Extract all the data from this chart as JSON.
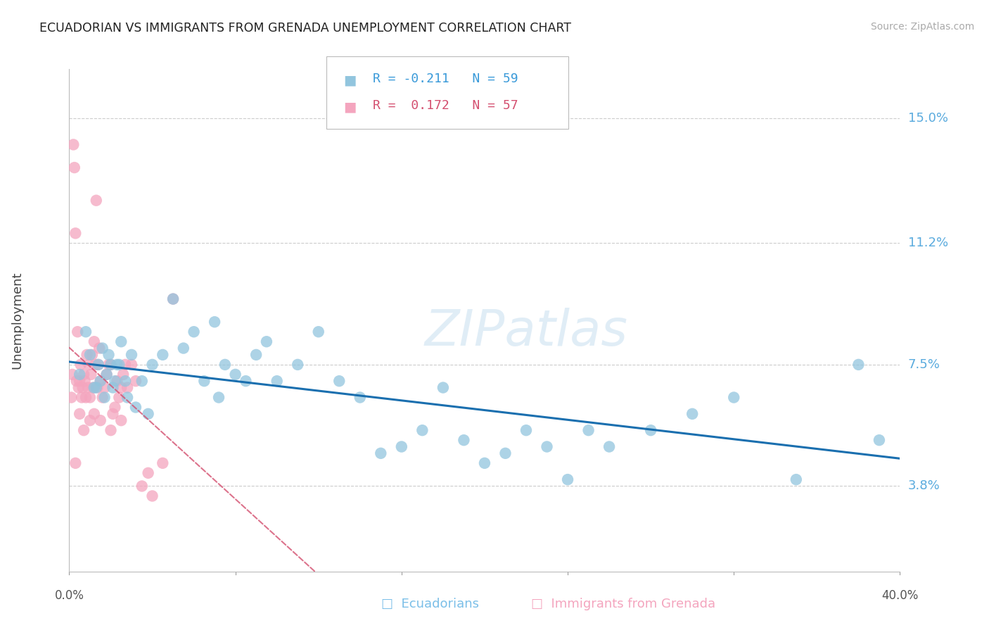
{
  "title": "ECUADORIAN VS IMMIGRANTS FROM GRENADA UNEMPLOYMENT CORRELATION CHART",
  "source": "Source: ZipAtlas.com",
  "ylabel": "Unemployment",
  "ytick_labels": [
    "3.8%",
    "7.5%",
    "11.2%",
    "15.0%"
  ],
  "ytick_values": [
    3.8,
    7.5,
    11.2,
    15.0
  ],
  "xmin": 0.0,
  "xmax": 40.0,
  "ymin": 1.2,
  "ymax": 16.5,
  "color_blue": "#92c5de",
  "color_pink": "#f4a5be",
  "color_trendline_blue": "#1a6faf",
  "color_trendline_pink": "#d45070",
  "watermark": "ZIPatlas",
  "watermark_color": "#c8dff0",
  "ecuadorians_x": [
    0.5,
    0.8,
    1.0,
    1.2,
    1.4,
    1.5,
    1.6,
    1.7,
    1.8,
    1.9,
    2.0,
    2.1,
    2.2,
    2.3,
    2.5,
    2.7,
    2.8,
    3.0,
    3.2,
    3.5,
    4.0,
    4.5,
    5.0,
    5.5,
    6.0,
    6.5,
    7.0,
    7.5,
    8.0,
    8.5,
    9.0,
    9.5,
    10.0,
    11.0,
    12.0,
    13.0,
    14.0,
    15.0,
    16.0,
    17.0,
    18.0,
    19.0,
    20.0,
    21.0,
    22.0,
    23.0,
    24.0,
    25.0,
    26.0,
    28.0,
    30.0,
    32.0,
    35.0,
    38.0,
    39.0,
    1.3,
    2.4,
    3.8,
    7.2
  ],
  "ecuadorians_y": [
    7.2,
    8.5,
    7.8,
    6.8,
    7.5,
    7.0,
    8.0,
    6.5,
    7.2,
    7.8,
    7.5,
    6.8,
    7.0,
    7.5,
    8.2,
    7.0,
    6.5,
    7.8,
    6.2,
    7.0,
    7.5,
    7.8,
    9.5,
    8.0,
    8.5,
    7.0,
    8.8,
    7.5,
    7.2,
    7.0,
    7.8,
    8.2,
    7.0,
    7.5,
    8.5,
    7.0,
    6.5,
    4.8,
    5.0,
    5.5,
    6.8,
    5.2,
    4.5,
    4.8,
    5.5,
    5.0,
    4.0,
    5.5,
    5.0,
    5.5,
    6.0,
    6.5,
    4.0,
    7.5,
    5.2,
    6.8,
    7.5,
    6.0,
    6.5
  ],
  "grenada_x": [
    0.1,
    0.15,
    0.2,
    0.25,
    0.3,
    0.35,
    0.4,
    0.45,
    0.5,
    0.55,
    0.6,
    0.65,
    0.7,
    0.75,
    0.8,
    0.85,
    0.9,
    0.95,
    1.0,
    1.05,
    1.1,
    1.15,
    1.2,
    1.25,
    1.3,
    1.35,
    1.4,
    1.45,
    1.5,
    1.6,
    1.7,
    1.8,
    1.9,
    2.0,
    2.1,
    2.2,
    2.3,
    2.4,
    2.5,
    2.6,
    2.7,
    2.8,
    3.0,
    3.2,
    3.5,
    3.8,
    4.0,
    4.5,
    5.0,
    0.3,
    0.5,
    0.7,
    1.0,
    1.2,
    1.5,
    2.0,
    2.5
  ],
  "grenada_y": [
    6.5,
    7.2,
    14.2,
    13.5,
    11.5,
    7.0,
    8.5,
    6.8,
    7.0,
    7.5,
    6.5,
    6.8,
    7.2,
    7.0,
    6.5,
    7.8,
    6.8,
    7.5,
    6.5,
    7.2,
    7.8,
    6.8,
    8.2,
    7.5,
    12.5,
    6.8,
    7.5,
    8.0,
    7.0,
    6.5,
    6.8,
    7.2,
    7.5,
    7.5,
    6.0,
    6.2,
    7.0,
    6.5,
    6.8,
    7.2,
    7.5,
    6.8,
    7.5,
    7.0,
    3.8,
    4.2,
    3.5,
    4.5,
    9.5,
    4.5,
    6.0,
    5.5,
    5.8,
    6.0,
    5.8,
    5.5,
    5.8
  ],
  "xtick_positions": [
    0,
    8,
    16,
    24,
    32,
    40
  ]
}
